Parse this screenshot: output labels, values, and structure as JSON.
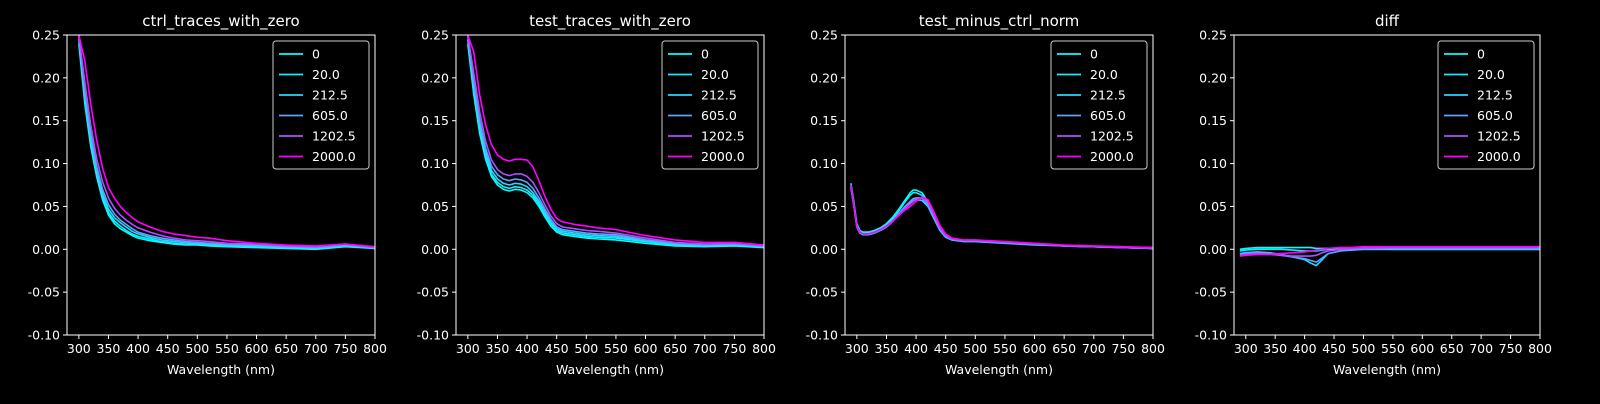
{
  "figure": {
    "background": "#000000",
    "axis_color": "#ffffff"
  },
  "chart_data": [
    {
      "type": "line",
      "title": "ctrl_traces_with_zero",
      "xlabel": "Wavelength (nm)",
      "ylabel": "",
      "xlim": [
        280,
        800
      ],
      "ylim": [
        -0.1,
        0.25
      ],
      "xticks": [
        300,
        350,
        400,
        450,
        500,
        550,
        600,
        650,
        700,
        750,
        800
      ],
      "yticks": [
        -0.1,
        -0.05,
        0.0,
        0.05,
        0.1,
        0.15,
        0.2,
        0.25
      ],
      "legend_position": "upper right",
      "x": [
        300,
        310,
        320,
        330,
        340,
        350,
        360,
        370,
        380,
        390,
        400,
        420,
        440,
        460,
        480,
        500,
        520,
        550,
        600,
        650,
        700,
        750,
        800
      ],
      "series": [
        {
          "name": "0",
          "color": "#00ffff",
          "values": [
            0.24,
            0.17,
            0.12,
            0.085,
            0.058,
            0.04,
            0.03,
            0.024,
            0.02,
            0.016,
            0.013,
            0.01,
            0.008,
            0.006,
            0.005,
            0.005,
            0.004,
            0.003,
            0.002,
            0.001,
            0.0,
            0.003,
            0.001
          ]
        },
        {
          "name": "20.0",
          "color": "#14ebff",
          "values": [
            0.245,
            0.175,
            0.125,
            0.088,
            0.061,
            0.043,
            0.033,
            0.027,
            0.022,
            0.018,
            0.015,
            0.012,
            0.009,
            0.007,
            0.006,
            0.006,
            0.005,
            0.004,
            0.003,
            0.002,
            0.001,
            0.004,
            0.001
          ]
        },
        {
          "name": "212.5",
          "color": "#2bd4ff",
          "values": [
            0.25,
            0.18,
            0.13,
            0.092,
            0.065,
            0.047,
            0.037,
            0.031,
            0.026,
            0.021,
            0.018,
            0.014,
            0.011,
            0.009,
            0.008,
            0.007,
            0.006,
            0.005,
            0.004,
            0.003,
            0.002,
            0.004,
            0.002
          ]
        },
        {
          "name": "605.0",
          "color": "#5ea1ff",
          "values": [
            0.25,
            0.185,
            0.135,
            0.097,
            0.07,
            0.052,
            0.041,
            0.034,
            0.029,
            0.024,
            0.02,
            0.016,
            0.013,
            0.011,
            0.009,
            0.008,
            0.007,
            0.006,
            0.005,
            0.003,
            0.002,
            0.005,
            0.002
          ]
        },
        {
          "name": "1202.5",
          "color": "#b04fff",
          "values": [
            0.25,
            0.195,
            0.145,
            0.106,
            0.079,
            0.06,
            0.048,
            0.04,
            0.034,
            0.029,
            0.025,
            0.02,
            0.016,
            0.013,
            0.011,
            0.01,
            0.009,
            0.007,
            0.006,
            0.004,
            0.003,
            0.006,
            0.002
          ]
        },
        {
          "name": "2000.0",
          "color": "#ff00ff",
          "values": [
            0.25,
            0.22,
            0.17,
            0.128,
            0.095,
            0.072,
            0.06,
            0.05,
            0.043,
            0.037,
            0.032,
            0.026,
            0.021,
            0.018,
            0.016,
            0.014,
            0.013,
            0.01,
            0.007,
            0.005,
            0.004,
            0.006,
            0.003
          ]
        }
      ]
    },
    {
      "type": "line",
      "title": "test_traces_with_zero",
      "xlabel": "Wavelength (nm)",
      "ylabel": "",
      "xlim": [
        280,
        800
      ],
      "ylim": [
        -0.1,
        0.25
      ],
      "xticks": [
        300,
        350,
        400,
        450,
        500,
        550,
        600,
        650,
        700,
        750,
        800
      ],
      "yticks": [
        -0.1,
        -0.05,
        0.0,
        0.05,
        0.1,
        0.15,
        0.2,
        0.25
      ],
      "legend_position": "upper right",
      "x": [
        300,
        310,
        320,
        330,
        340,
        350,
        360,
        370,
        380,
        390,
        400,
        410,
        420,
        430,
        440,
        450,
        460,
        480,
        500,
        520,
        550,
        600,
        650,
        700,
        750,
        800
      ],
      "series": [
        {
          "name": "0",
          "color": "#00ffff",
          "values": [
            0.24,
            0.18,
            0.135,
            0.105,
            0.085,
            0.075,
            0.07,
            0.068,
            0.07,
            0.069,
            0.066,
            0.06,
            0.05,
            0.038,
            0.027,
            0.02,
            0.017,
            0.015,
            0.013,
            0.012,
            0.011,
            0.007,
            0.004,
            0.003,
            0.004,
            0.002
          ]
        },
        {
          "name": "20.0",
          "color": "#14ebff",
          "values": [
            0.245,
            0.185,
            0.14,
            0.108,
            0.088,
            0.078,
            0.073,
            0.071,
            0.073,
            0.072,
            0.069,
            0.063,
            0.053,
            0.041,
            0.03,
            0.022,
            0.019,
            0.017,
            0.015,
            0.014,
            0.013,
            0.009,
            0.005,
            0.004,
            0.005,
            0.003
          ]
        },
        {
          "name": "212.5",
          "color": "#2bd4ff",
          "values": [
            0.25,
            0.19,
            0.145,
            0.113,
            0.092,
            0.082,
            0.077,
            0.075,
            0.077,
            0.076,
            0.073,
            0.066,
            0.056,
            0.044,
            0.032,
            0.024,
            0.021,
            0.019,
            0.017,
            0.016,
            0.015,
            0.01,
            0.006,
            0.005,
            0.006,
            0.003
          ]
        },
        {
          "name": "605.0",
          "color": "#5ea1ff",
          "values": [
            0.25,
            0.195,
            0.15,
            0.118,
            0.097,
            0.087,
            0.082,
            0.08,
            0.082,
            0.081,
            0.078,
            0.071,
            0.06,
            0.047,
            0.035,
            0.026,
            0.023,
            0.021,
            0.019,
            0.018,
            0.017,
            0.011,
            0.007,
            0.005,
            0.006,
            0.004
          ]
        },
        {
          "name": "1202.5",
          "color": "#b04fff",
          "values": [
            0.25,
            0.205,
            0.16,
            0.126,
            0.104,
            0.093,
            0.088,
            0.086,
            0.088,
            0.088,
            0.085,
            0.078,
            0.066,
            0.052,
            0.039,
            0.03,
            0.026,
            0.024,
            0.022,
            0.021,
            0.019,
            0.013,
            0.008,
            0.006,
            0.007,
            0.004
          ]
        },
        {
          "name": "2000.0",
          "color": "#ff00ff",
          "values": [
            0.25,
            0.23,
            0.18,
            0.145,
            0.122,
            0.11,
            0.105,
            0.103,
            0.105,
            0.105,
            0.104,
            0.096,
            0.08,
            0.062,
            0.047,
            0.036,
            0.032,
            0.029,
            0.027,
            0.025,
            0.023,
            0.016,
            0.011,
            0.008,
            0.008,
            0.005
          ]
        }
      ]
    },
    {
      "type": "line",
      "title": "test_minus_ctrl_norm",
      "xlabel": "Wavelength (nm)",
      "ylabel": "",
      "xlim": [
        280,
        800
      ],
      "ylim": [
        -0.1,
        0.25
      ],
      "xticks": [
        300,
        350,
        400,
        450,
        500,
        550,
        600,
        650,
        700,
        750,
        800
      ],
      "yticks": [
        -0.1,
        -0.05,
        0.0,
        0.05,
        0.1,
        0.15,
        0.2,
        0.25
      ],
      "legend_position": "upper right",
      "x": [
        290,
        295,
        300,
        305,
        310,
        320,
        330,
        340,
        350,
        360,
        370,
        380,
        390,
        395,
        400,
        410,
        420,
        430,
        440,
        450,
        460,
        480,
        500,
        550,
        600,
        650,
        700,
        750,
        800
      ],
      "series": [
        {
          "name": "0",
          "color": "#00ffff",
          "values": [
            0.077,
            0.055,
            0.03,
            0.022,
            0.02,
            0.02,
            0.022,
            0.025,
            0.03,
            0.037,
            0.046,
            0.056,
            0.066,
            0.069,
            0.069,
            0.066,
            0.055,
            0.038,
            0.024,
            0.016,
            0.012,
            0.01,
            0.01,
            0.008,
            0.006,
            0.004,
            0.003,
            0.002,
            0.001
          ]
        },
        {
          "name": "20.0",
          "color": "#14ebff",
          "values": [
            0.075,
            0.053,
            0.028,
            0.021,
            0.019,
            0.019,
            0.021,
            0.024,
            0.029,
            0.035,
            0.044,
            0.054,
            0.063,
            0.066,
            0.066,
            0.063,
            0.053,
            0.037,
            0.023,
            0.015,
            0.012,
            0.01,
            0.01,
            0.008,
            0.006,
            0.004,
            0.003,
            0.002,
            0.001
          ]
        },
        {
          "name": "212.5",
          "color": "#2bd4ff",
          "values": [
            0.072,
            0.05,
            0.026,
            0.019,
            0.017,
            0.017,
            0.019,
            0.022,
            0.026,
            0.032,
            0.04,
            0.048,
            0.055,
            0.057,
            0.058,
            0.057,
            0.05,
            0.036,
            0.022,
            0.014,
            0.011,
            0.009,
            0.009,
            0.007,
            0.005,
            0.004,
            0.003,
            0.002,
            0.001
          ]
        },
        {
          "name": "605.0",
          "color": "#5ea1ff",
          "values": [
            0.073,
            0.051,
            0.027,
            0.02,
            0.018,
            0.018,
            0.02,
            0.023,
            0.027,
            0.033,
            0.041,
            0.049,
            0.056,
            0.059,
            0.06,
            0.06,
            0.052,
            0.037,
            0.023,
            0.015,
            0.012,
            0.01,
            0.01,
            0.008,
            0.006,
            0.004,
            0.003,
            0.002,
            0.001
          ]
        },
        {
          "name": "1202.5",
          "color": "#b04fff",
          "values": [
            0.074,
            0.052,
            0.027,
            0.02,
            0.018,
            0.018,
            0.02,
            0.023,
            0.027,
            0.033,
            0.04,
            0.047,
            0.053,
            0.056,
            0.058,
            0.06,
            0.055,
            0.04,
            0.025,
            0.016,
            0.012,
            0.01,
            0.01,
            0.008,
            0.006,
            0.004,
            0.003,
            0.002,
            0.001
          ]
        },
        {
          "name": "2000.0",
          "color": "#ff00ff",
          "values": [
            0.075,
            0.052,
            0.027,
            0.02,
            0.018,
            0.018,
            0.02,
            0.023,
            0.027,
            0.032,
            0.039,
            0.045,
            0.05,
            0.053,
            0.056,
            0.061,
            0.058,
            0.044,
            0.028,
            0.018,
            0.013,
            0.011,
            0.011,
            0.009,
            0.007,
            0.005,
            0.004,
            0.003,
            0.002
          ]
        }
      ]
    },
    {
      "type": "line",
      "title": "diff",
      "xlabel": "Wavelength (nm)",
      "ylabel": "",
      "xlim": [
        280,
        800
      ],
      "ylim": [
        -0.1,
        0.25
      ],
      "xticks": [
        300,
        350,
        400,
        450,
        500,
        550,
        600,
        650,
        700,
        750,
        800
      ],
      "yticks": [
        -0.1,
        -0.05,
        0.0,
        0.05,
        0.1,
        0.15,
        0.2,
        0.25
      ],
      "legend_position": "upper right",
      "x": [
        290,
        300,
        320,
        340,
        360,
        380,
        400,
        410,
        420,
        430,
        440,
        460,
        480,
        500,
        550,
        600,
        650,
        700,
        750,
        800
      ],
      "series": [
        {
          "name": "0",
          "color": "#00ffff",
          "values": [
            0.0,
            0.001,
            0.002,
            0.002,
            0.002,
            0.002,
            0.002,
            0.002,
            0.001,
            0.001,
            0.001,
            0.001,
            0.001,
            0.001,
            0.0,
            0.0,
            0.0,
            0.0,
            0.0,
            0.0
          ]
        },
        {
          "name": "20.0",
          "color": "#14ebff",
          "values": [
            -0.002,
            -0.001,
            0.0,
            0.0,
            0.0,
            -0.001,
            -0.002,
            -0.002,
            -0.002,
            -0.001,
            0.0,
            0.0,
            0.0,
            0.0,
            0.0,
            0.0,
            0.0,
            0.0,
            0.0,
            0.0
          ]
        },
        {
          "name": "212.5",
          "color": "#2bd4ff",
          "values": [
            -0.005,
            -0.004,
            -0.003,
            -0.004,
            -0.006,
            -0.009,
            -0.012,
            -0.016,
            -0.019,
            -0.012,
            -0.005,
            -0.002,
            -0.001,
            0.0,
            0.0,
            0.0,
            0.0,
            0.0,
            0.0,
            0.0
          ]
        },
        {
          "name": "605.0",
          "color": "#5ea1ff",
          "values": [
            -0.006,
            -0.005,
            -0.004,
            -0.005,
            -0.007,
            -0.009,
            -0.011,
            -0.013,
            -0.015,
            -0.01,
            -0.005,
            -0.002,
            0.0,
            0.001,
            0.001,
            0.001,
            0.001,
            0.001,
            0.001,
            0.001
          ]
        },
        {
          "name": "1202.5",
          "color": "#b04fff",
          "values": [
            -0.007,
            -0.006,
            -0.005,
            -0.006,
            -0.007,
            -0.008,
            -0.008,
            -0.008,
            -0.007,
            -0.004,
            -0.002,
            0.0,
            0.001,
            0.001,
            0.002,
            0.002,
            0.002,
            0.002,
            0.002,
            0.002
          ]
        },
        {
          "name": "2000.0",
          "color": "#ff00ff",
          "values": [
            -0.008,
            -0.007,
            -0.006,
            -0.006,
            -0.005,
            -0.004,
            -0.003,
            -0.002,
            -0.001,
            0.0,
            0.001,
            0.002,
            0.002,
            0.003,
            0.003,
            0.003,
            0.003,
            0.003,
            0.003,
            0.003
          ]
        }
      ]
    }
  ]
}
